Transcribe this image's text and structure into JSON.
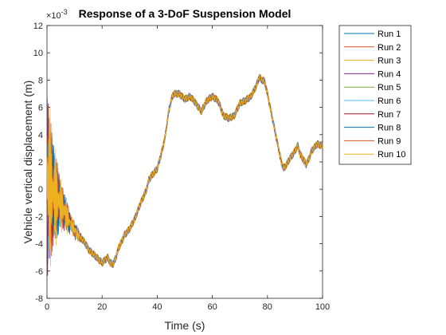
{
  "chart_data": {
    "type": "line",
    "title": "Response of a 3-DoF Suspension Model",
    "xlabel": "Time (s)",
    "ylabel": "Vehicle vertical displacement (m)",
    "y_multiplier": "×10",
    "y_exponent": "-3",
    "xlim": [
      0,
      100
    ],
    "ylim": [
      -8,
      12
    ],
    "xticks": [
      0,
      20,
      40,
      60,
      80,
      100
    ],
    "yticks": [
      -8,
      -6,
      -4,
      -2,
      0,
      2,
      4,
      6,
      8,
      10,
      12
    ],
    "grid": false,
    "legend_position": "outside-right",
    "series": [
      {
        "name": "Run 1",
        "color": "#0072BD"
      },
      {
        "name": "Run 2",
        "color": "#D95319"
      },
      {
        "name": "Run 3",
        "color": "#EDB120"
      },
      {
        "name": "Run 4",
        "color": "#7E2F8E"
      },
      {
        "name": "Run 5",
        "color": "#77AC30"
      },
      {
        "name": "Run 6",
        "color": "#4DBEEE"
      },
      {
        "name": "Run 7",
        "color": "#A2142F"
      },
      {
        "name": "Run 8",
        "color": "#0072BD"
      },
      {
        "name": "Run 9",
        "color": "#D95319"
      },
      {
        "name": "Run 10",
        "color": "#EDB120"
      }
    ],
    "trend": {
      "x": [
        0,
        2,
        4,
        6,
        8,
        10,
        12,
        14,
        15,
        17,
        18,
        20,
        21,
        22,
        23,
        24,
        25,
        26,
        27,
        28,
        30,
        32,
        34,
        36,
        37,
        38,
        40,
        42,
        43,
        44,
        45,
        46,
        48,
        50,
        52,
        54,
        56,
        58,
        60,
        62,
        63,
        64,
        66,
        68,
        70,
        72,
        74,
        76,
        77,
        78,
        79,
        80,
        82,
        84,
        85,
        86,
        88,
        90,
        91,
        92,
        93,
        94,
        95,
        96,
        98,
        100
      ],
      "y": [
        0.5,
        -0.2,
        -0.8,
        -1.5,
        -2.3,
        -3.0,
        -3.5,
        -4.0,
        -4.4,
        -4.8,
        -5.0,
        -5.4,
        -5.2,
        -5.0,
        -5.4,
        -5.5,
        -5.0,
        -4.3,
        -3.9,
        -3.4,
        -2.9,
        -2.1,
        -1.0,
        -0.1,
        0.7,
        1.0,
        1.5,
        3.0,
        4.0,
        5.5,
        6.5,
        7.0,
        7.0,
        6.6,
        6.8,
        6.3,
        5.7,
        6.5,
        6.8,
        6.5,
        6.0,
        5.4,
        5.2,
        5.4,
        6.3,
        6.5,
        6.8,
        7.6,
        8.2,
        8.0,
        7.9,
        7.0,
        5.0,
        3.0,
        2.0,
        1.5,
        2.2,
        2.8,
        3.2,
        2.5,
        2.2,
        1.8,
        2.2,
        2.8,
        3.3,
        3.2
      ]
    },
    "transient": {
      "start": 0,
      "end": 13,
      "initial_amplitude": 7.5,
      "decay_rate": 0.28
    }
  }
}
